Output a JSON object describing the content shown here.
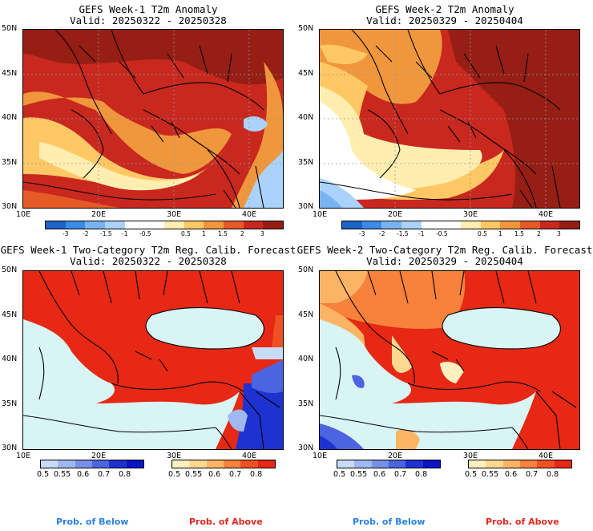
{
  "panels": [
    {
      "title": "GEFS Week-1 T2m Anomaly",
      "valid": "Valid: 20250322 - 20250328"
    },
    {
      "title": "GEFS Week-2 T2m Anomaly",
      "valid": "Valid: 20250329 - 20250404"
    },
    {
      "title": "GEFS Week-1 Two-Category T2m Reg. Calib. Forecast",
      "valid": "Valid: 20250322 - 20250328"
    },
    {
      "title": "GEFS Week-2 Two-Category T2m Reg. Calib. Forecast",
      "valid": "Valid: 20250329 - 20250404"
    }
  ],
  "lat_ticks": [
    "50N",
    "45N",
    "40N",
    "35N",
    "30N"
  ],
  "lon_ticks": [
    "10E",
    "20E",
    "30E",
    "40E"
  ],
  "anomaly_colorbar": {
    "labels": [
      "-3",
      "-2",
      "-1.5",
      "-1",
      "-0.5",
      "0.5",
      "1",
      "1.5",
      "2",
      "3"
    ],
    "colors": [
      "#1e64c8",
      "#3c8ce6",
      "#78b4f0",
      "#aad2fa",
      "#ffffff",
      "#ffffff",
      "#ffeeb0",
      "#ffc864",
      "#f0963c",
      "#e65a28",
      "#c8281e",
      "#961e14"
    ]
  },
  "prob_below": {
    "labels": [
      "0.5",
      "0.55",
      "0.6",
      "0.7",
      "0.8"
    ],
    "colors": [
      "#c8dcf8",
      "#a0b8f0",
      "#7890e8",
      "#4c64e0",
      "#1e32d2",
      "#0a14c8"
    ]
  },
  "prob_above": {
    "labels": [
      "0.5",
      "0.55",
      "0.6",
      "0.7",
      "0.8"
    ],
    "colors": [
      "#fff0c0",
      "#ffd890",
      "#fcb464",
      "#f8823c",
      "#f05022",
      "#e62814"
    ]
  },
  "legend": {
    "below": "Prob. of Below",
    "above": "Prob. of Above"
  },
  "colors": {
    "sea": "#d8f4f4",
    "below_text": "#2a80e0",
    "above_text": "#e0281e"
  }
}
